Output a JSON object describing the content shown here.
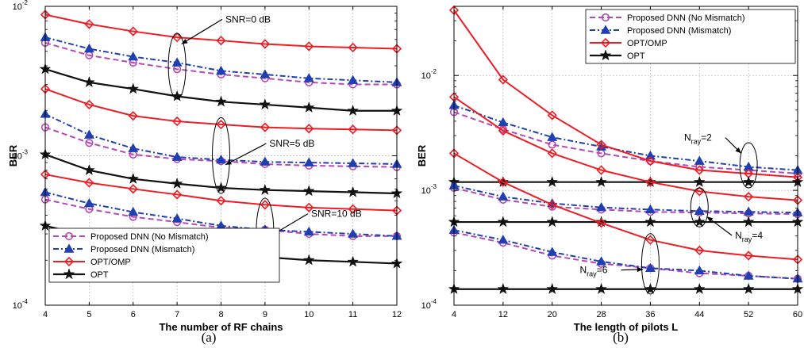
{
  "chart_data": [
    {
      "type": "line",
      "caption": "(a)",
      "xlabel": "The number of RF chains",
      "ylabel": "BER",
      "xlim": [
        4,
        12
      ],
      "ylim": [
        0.0001,
        0.01
      ],
      "yscale": "log",
      "grid": true,
      "legend_position": "bottom-left",
      "xticks": [
        "4",
        "5",
        "6",
        "7",
        "8",
        "9",
        "10",
        "11",
        "12"
      ],
      "yticks": [
        {
          "value": 0.01,
          "base": "10",
          "exp": "-2"
        },
        {
          "value": 0.001,
          "base": "10",
          "exp": "-3"
        },
        {
          "value": 0.0001,
          "base": "10",
          "exp": "-4"
        }
      ],
      "x": [
        4,
        5,
        6,
        7,
        8,
        9,
        10,
        11,
        12
      ],
      "series": [
        {
          "name": "Proposed DNN (No Mismatch)",
          "style": "dnn_no",
          "group": "SNR=0 dB",
          "values": [
            0.0057,
            0.0047,
            0.0042,
            0.0038,
            0.0035,
            0.0033,
            0.0031,
            0.003,
            0.003
          ]
        },
        {
          "name": "Proposed DNN (Mismatch)",
          "style": "dnn_mis",
          "group": "SNR=0 dB",
          "values": [
            0.0062,
            0.0052,
            0.0046,
            0.0042,
            0.0037,
            0.0035,
            0.0033,
            0.0032,
            0.0031
          ]
        },
        {
          "name": "OPT/OMP",
          "style": "omp",
          "group": "SNR=0 dB",
          "values": [
            0.0088,
            0.0076,
            0.0068,
            0.0062,
            0.0059,
            0.0056,
            0.0054,
            0.0053,
            0.0052
          ]
        },
        {
          "name": "OPT",
          "style": "opt",
          "group": "SNR=0 dB",
          "values": [
            0.0038,
            0.0031,
            0.0028,
            0.0025,
            0.0023,
            0.0022,
            0.0021,
            0.002,
            0.002
          ]
        },
        {
          "name": "Proposed DNN (No Mismatch)",
          "style": "dnn_no",
          "group": "SNR=5 dB",
          "values": [
            0.00155,
            0.00122,
            0.00102,
            0.00095,
            0.00092,
            0.00088,
            0.00086,
            0.00085,
            0.00084
          ]
        },
        {
          "name": "Proposed DNN (Mismatch)",
          "style": "dnn_mis",
          "group": "SNR=5 dB",
          "values": [
            0.0019,
            0.00138,
            0.00112,
            0.00098,
            0.00094,
            0.00091,
            0.0009,
            0.00089,
            0.00088
          ]
        },
        {
          "name": "OPT/OMP",
          "style": "omp",
          "group": "SNR=5 dB",
          "values": [
            0.0028,
            0.0022,
            0.00185,
            0.0017,
            0.00162,
            0.00155,
            0.00152,
            0.0015,
            0.00148
          ]
        },
        {
          "name": "OPT",
          "style": "opt",
          "group": "SNR=5 dB",
          "values": [
            0.00102,
            0.0008,
            0.0007,
            0.00065,
            0.00061,
            0.00059,
            0.00058,
            0.00057,
            0.00056
          ]
        },
        {
          "name": "Proposed DNN (No Mismatch)",
          "style": "dnn_no",
          "group": "SNR=10 dB",
          "values": [
            0.00051,
            0.00044,
            0.00039,
            0.00036,
            0.00033,
            0.00032,
            0.0003,
            0.00029,
            0.00029
          ]
        },
        {
          "name": "Proposed DNN (Mismatch)",
          "style": "dnn_mis",
          "group": "SNR=10 dB",
          "values": [
            0.00057,
            0.00048,
            0.00042,
            0.00038,
            0.00034,
            0.00032,
            0.00031,
            0.0003,
            0.00029
          ]
        },
        {
          "name": "OPT/OMP",
          "style": "omp",
          "group": "SNR=10 dB",
          "values": [
            0.00075,
            0.00066,
            0.0006,
            0.00055,
            0.0005,
            0.00047,
            0.00045,
            0.00044,
            0.00043
          ]
        },
        {
          "name": "OPT",
          "style": "opt",
          "group": "SNR=10 dB",
          "values": [
            0.00034,
            0.00029,
            0.00026,
            0.00024,
            0.00022,
            0.00021,
            0.0002,
            0.000195,
            0.00019
          ]
        }
      ],
      "legend": [
        "Proposed DNN (No Mismatch)",
        "Proposed DNN (Mismatch)",
        "OPT/OMP",
        "OPT"
      ],
      "annotations": [
        {
          "text": "SNR=0 dB",
          "ellipse": {
            "x": 7,
            "ylo": 0.0024,
            "yhi": 0.0066
          },
          "tip": {
            "x": 7.1,
            "y": 0.0056
          },
          "textpos": {
            "x": 8.1,
            "y": 0.0078
          }
        },
        {
          "text": "SNR=5 dB",
          "ellipse": {
            "x": 8,
            "ylo": 0.00056,
            "yhi": 0.0018
          },
          "tip": {
            "x": 8.1,
            "y": 0.00087
          },
          "textpos": {
            "x": 9.1,
            "y": 0.00115
          }
        },
        {
          "text": "SNR=10 dB",
          "ellipse": {
            "x": 9,
            "ylo": 0.000185,
            "yhi": 0.00052
          },
          "tip": {
            "x": 9.12,
            "y": 0.00029
          },
          "textpos": {
            "x": 10.05,
            "y": 0.00039
          }
        }
      ]
    },
    {
      "type": "line",
      "caption": "(b)",
      "xlabel": "The length of pilots L",
      "ylabel": "BER",
      "xlim": [
        4,
        60
      ],
      "ylim": [
        0.0001,
        0.04
      ],
      "yscale": "log",
      "grid": true,
      "legend_position": "top-right",
      "xticks": [
        "4",
        "12",
        "20",
        "28",
        "36",
        "44",
        "52",
        "60"
      ],
      "yticks": [
        {
          "value": 0.01,
          "base": "10",
          "exp": "-2"
        },
        {
          "value": 0.001,
          "base": "10",
          "exp": "-3"
        },
        {
          "value": 0.0001,
          "base": "10",
          "exp": "-4"
        }
      ],
      "x": [
        4,
        12,
        20,
        28,
        36,
        44,
        52,
        60
      ],
      "series": [
        {
          "name": "Proposed DNN (No Mismatch)",
          "style": "dnn_no",
          "group": "N_ray=2",
          "values": [
            0.0048,
            0.0034,
            0.0025,
            0.0021,
            0.0018,
            0.0016,
            0.0015,
            0.0014
          ]
        },
        {
          "name": "Proposed DNN (Mismatch)",
          "style": "dnn_mis",
          "group": "N_ray=2",
          "values": [
            0.0055,
            0.0039,
            0.0029,
            0.0024,
            0.002,
            0.0018,
            0.0016,
            0.0015
          ]
        },
        {
          "name": "OPT/OMP",
          "style": "omp",
          "group": "N_ray=2",
          "values": [
            0.037,
            0.0092,
            0.0045,
            0.0025,
            0.0018,
            0.0015,
            0.0014,
            0.0013
          ]
        },
        {
          "name": "OPT",
          "style": "opt",
          "group": "N_ray=2",
          "values": [
            0.00118,
            0.00118,
            0.00118,
            0.00118,
            0.00118,
            0.00118,
            0.00118,
            0.00118
          ]
        },
        {
          "name": "Proposed DNN (No Mismatch)",
          "style": "dnn_no",
          "group": "N_ray=4",
          "values": [
            0.00105,
            0.00083,
            0.00072,
            0.00068,
            0.00065,
            0.00064,
            0.00063,
            0.00062
          ]
        },
        {
          "name": "Proposed DNN (Mismatch)",
          "style": "dnn_mis",
          "group": "N_ray=4",
          "values": [
            0.0011,
            0.00088,
            0.00077,
            0.00071,
            0.00068,
            0.00066,
            0.00065,
            0.00064
          ]
        },
        {
          "name": "OPT/OMP",
          "style": "omp",
          "group": "N_ray=4",
          "values": [
            0.0065,
            0.0033,
            0.0021,
            0.0015,
            0.00118,
            0.00098,
            0.00088,
            0.00082
          ]
        },
        {
          "name": "OPT",
          "style": "opt",
          "group": "N_ray=4",
          "values": [
            0.00053,
            0.00053,
            0.00053,
            0.00053,
            0.00053,
            0.00053,
            0.00053,
            0.00053
          ]
        },
        {
          "name": "Proposed DNN (No Mismatch)",
          "style": "dnn_no",
          "group": "N_ray=6",
          "values": [
            0.00043,
            0.00035,
            0.00027,
            0.00023,
            0.00021,
            0.00019,
            0.00018,
            0.00017
          ]
        },
        {
          "name": "Proposed DNN (Mismatch)",
          "style": "dnn_mis",
          "group": "N_ray=6",
          "values": [
            0.00045,
            0.00037,
            0.00029,
            0.00024,
            0.00021,
            0.0002,
            0.00018,
            0.00017
          ]
        },
        {
          "name": "OPT/OMP",
          "style": "omp",
          "group": "N_ray=6",
          "values": [
            0.0021,
            0.00118,
            0.00075,
            0.00052,
            0.00037,
            0.0003,
            0.00027,
            0.00025
          ]
        },
        {
          "name": "OPT",
          "style": "opt",
          "group": "N_ray=6",
          "values": [
            0.000138,
            0.000138,
            0.000138,
            0.000138,
            0.000138,
            0.000138,
            0.000138,
            0.000138
          ]
        }
      ],
      "legend": [
        "Proposed DNN (No Mismatch)",
        "Proposed DNN (Mismatch)",
        "OPT/OMP",
        "OPT"
      ],
      "annotations": [
        {
          "text": "N",
          "sub": "ray",
          "tail": "=2",
          "ellipse": {
            "x": 52,
            "ylo": 0.00105,
            "yhi": 0.0026
          },
          "tip": {
            "x": 50.8,
            "y": 0.0021
          },
          "textpos": {
            "x": 41.5,
            "y": 0.0027
          }
        },
        {
          "text": "N",
          "sub": "ray",
          "tail": "=4",
          "ellipse": {
            "x": 44,
            "ylo": 0.00048,
            "yhi": 0.00105
          },
          "tip": {
            "x": 45.2,
            "y": 0.00059
          },
          "textpos": {
            "x": 49.8,
            "y": 0.00038
          }
        },
        {
          "text": "N",
          "sub": "ray",
          "tail": "=6",
          "ellipse": {
            "x": 36,
            "ylo": 0.000125,
            "yhi": 0.00042
          },
          "tip": {
            "x": 34.8,
            "y": 0.000205
          },
          "textpos": {
            "x": 24.5,
            "y": 0.00019
          }
        }
      ]
    }
  ],
  "colors": {
    "dnn_no": "#b548b5",
    "dnn_mis": "#1f3fb2",
    "omp": "#ee1c24",
    "opt": "#111111",
    "grid": "#bdbdbd"
  }
}
